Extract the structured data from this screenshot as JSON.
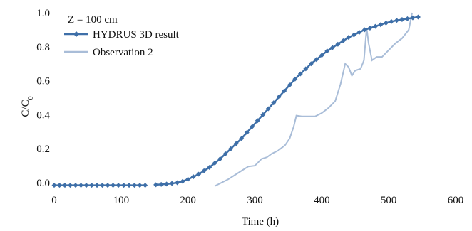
{
  "chart_data": {
    "type": "line",
    "annotation": "Z = 100 cm",
    "xlabel": "Time (h)",
    "ylabel": "C/C",
    "ylabel_sub": "0",
    "xlim": [
      0,
      600
    ],
    "ylim": [
      0,
      1.0
    ],
    "xticks": [
      0,
      100,
      200,
      300,
      400,
      500,
      600
    ],
    "yticks": [
      "0.0",
      "0.2",
      "0.4",
      "0.6",
      "0.8",
      "1.0"
    ],
    "grid": false,
    "legend_position": "top-left",
    "series": [
      {
        "name": "HYDRUS 3D result",
        "color": "#3e6fa8",
        "marker": "diamond",
        "x": [
          0,
          8,
          16,
          24,
          32,
          40,
          48,
          56,
          64,
          72,
          80,
          88,
          96,
          104,
          112,
          120,
          128,
          136,
          152,
          160,
          168,
          176,
          184,
          192,
          200,
          208,
          216,
          224,
          232,
          240,
          248,
          256,
          264,
          272,
          280,
          288,
          296,
          304,
          312,
          320,
          328,
          336,
          344,
          352,
          360,
          368,
          376,
          384,
          392,
          400,
          408,
          416,
          424,
          432,
          440,
          448,
          456,
          464,
          472,
          480,
          488,
          496,
          504,
          512,
          520,
          528,
          536,
          544
        ],
        "y": [
          -0.015,
          -0.015,
          -0.015,
          -0.015,
          -0.015,
          -0.015,
          -0.015,
          -0.015,
          -0.015,
          -0.015,
          -0.015,
          -0.015,
          -0.015,
          -0.015,
          -0.015,
          -0.015,
          -0.015,
          -0.015,
          -0.012,
          -0.01,
          -0.008,
          -0.004,
          0.0,
          0.008,
          0.02,
          0.035,
          0.05,
          0.07,
          0.09,
          0.115,
          0.14,
          0.17,
          0.2,
          0.23,
          0.26,
          0.295,
          0.33,
          0.365,
          0.4,
          0.435,
          0.47,
          0.505,
          0.54,
          0.575,
          0.61,
          0.64,
          0.67,
          0.7,
          0.725,
          0.75,
          0.775,
          0.795,
          0.815,
          0.835,
          0.855,
          0.87,
          0.885,
          0.9,
          0.91,
          0.92,
          0.93,
          0.94,
          0.948,
          0.955,
          0.96,
          0.965,
          0.97,
          0.975
        ]
      },
      {
        "name": "Observation 2",
        "color": "#a9bdd8",
        "marker": "none",
        "x": [
          240,
          250,
          260,
          270,
          280,
          290,
          300,
          305,
          310,
          318,
          325,
          335,
          345,
          352,
          358,
          362,
          370,
          380,
          390,
          400,
          410,
          420,
          428,
          435,
          440,
          445,
          450,
          458,
          463,
          467,
          470,
          475,
          482,
          490,
          500,
          510,
          520,
          530,
          535
        ],
        "y": [
          -0.02,
          0.0,
          0.02,
          0.045,
          0.07,
          0.095,
          0.1,
          0.12,
          0.14,
          0.15,
          0.17,
          0.19,
          0.22,
          0.26,
          0.33,
          0.395,
          0.39,
          0.39,
          0.39,
          0.41,
          0.44,
          0.48,
          0.58,
          0.7,
          0.68,
          0.63,
          0.66,
          0.67,
          0.72,
          0.91,
          0.82,
          0.72,
          0.74,
          0.74,
          0.78,
          0.82,
          0.85,
          0.9,
          1.0
        ]
      }
    ]
  }
}
